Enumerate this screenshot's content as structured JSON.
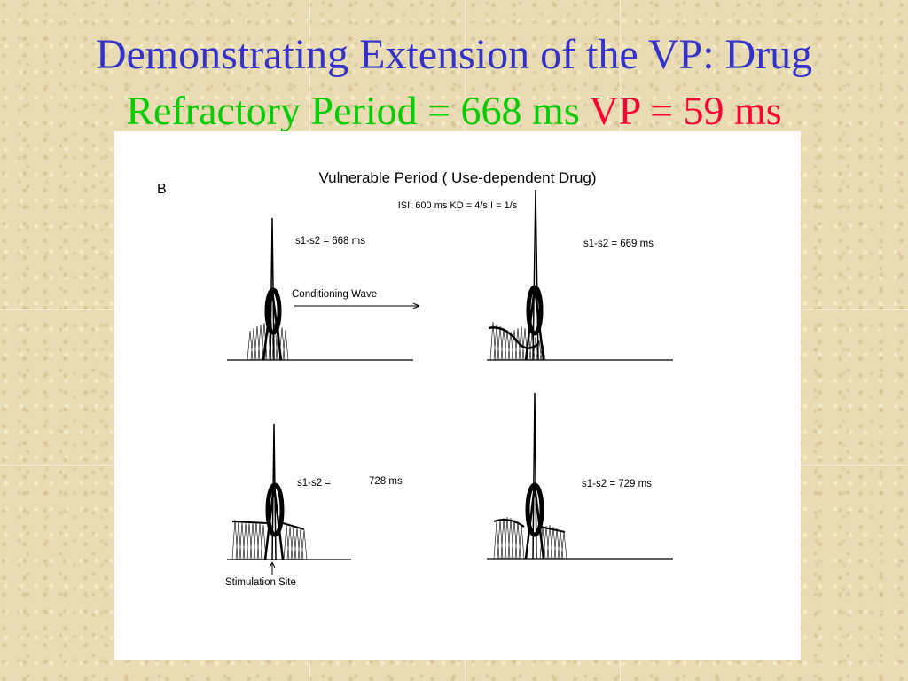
{
  "slide": {
    "title_line1": "Demonstrating Extension of the VP:  Drug",
    "title_line2_part1": "Refractory Period = 668 ms",
    "title_line2_part2": "VP = 59 ms",
    "colors": {
      "title_blue": "#3333cc",
      "title_green": "#00cc00",
      "title_red": "#ff0033",
      "background": "#e9dcb4"
    }
  },
  "figure": {
    "panel_label": "B",
    "title": "Vulnerable Period ( Use-dependent Drug)",
    "subtitle": "ISI: 600 ms  KD = 4/s  I = 1/s",
    "conditioning_label": "Conditioning Wave",
    "stimulation_label": "Stimulation Site",
    "panels": [
      {
        "label": "s1-s2 = 668 ms"
      },
      {
        "label": "s1-s2 = 669 ms"
      },
      {
        "label_prefix": "s1-s2 =",
        "label_value": "728 ms"
      },
      {
        "label": "s1-s2 = 729 ms"
      }
    ]
  }
}
